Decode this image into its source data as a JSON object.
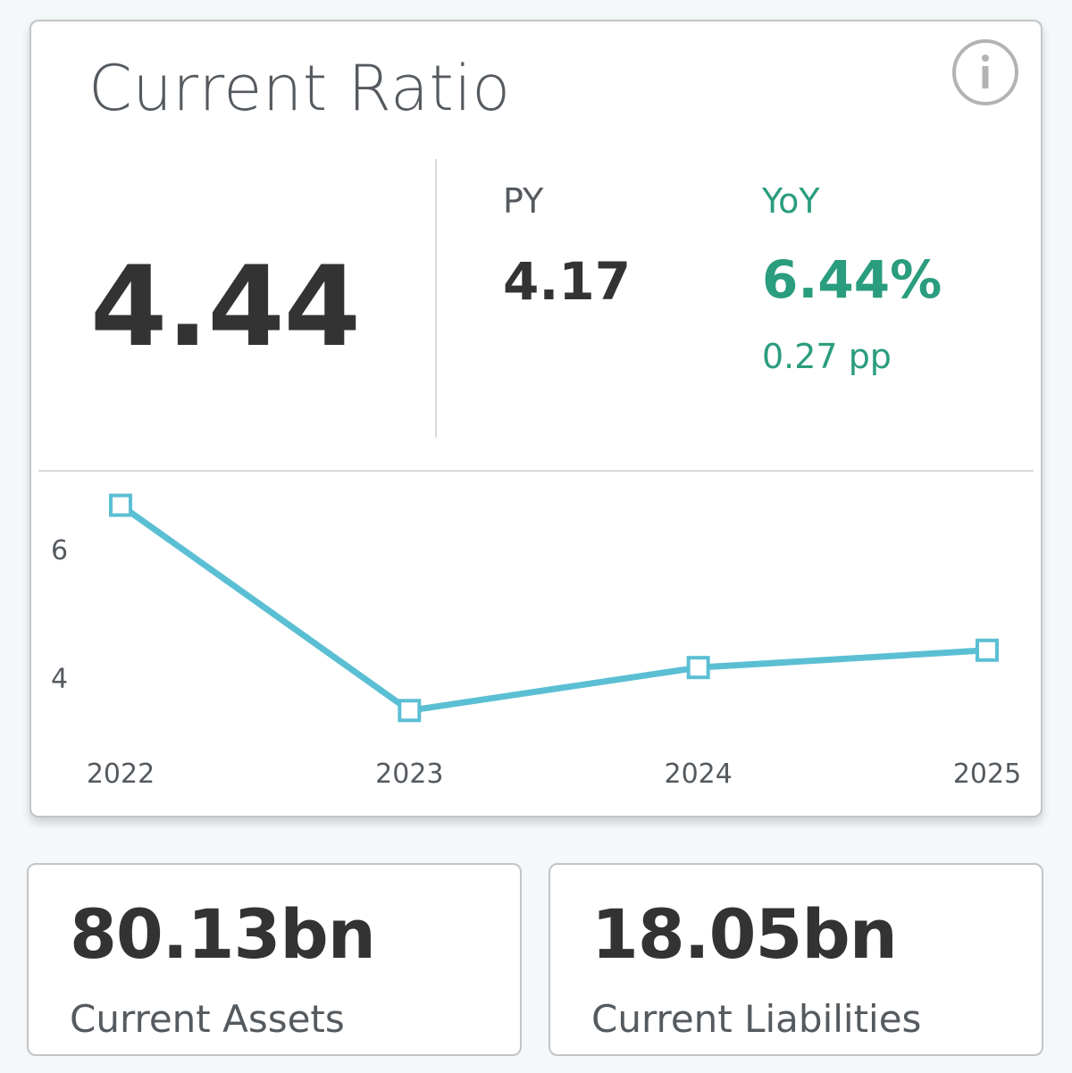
{
  "card": {
    "title": "Current Ratio",
    "info_icon": "info-circle-icon",
    "value": "4.44",
    "py_label": "PY",
    "py_value": "4.17",
    "yoy_label": "YoY",
    "yoy_value": "6.44%",
    "yoy_pp": "0.27 pp",
    "accent_color": "#2a9d7e",
    "line_color": "#5bbfd4"
  },
  "chart_data": {
    "type": "line",
    "x": [
      "2022",
      "2023",
      "2024",
      "2025"
    ],
    "series": [
      {
        "values": [
          6.7,
          3.5,
          4.17,
          4.44
        ]
      }
    ],
    "y_ticks": [
      "6",
      "4"
    ],
    "ylim": [
      3.1,
      7.0
    ],
    "grid": false,
    "marker": "square"
  },
  "tiles": [
    {
      "value": "80.13bn",
      "label": "Current Assets"
    },
    {
      "value": "18.05bn",
      "label": "Current Liabilities"
    }
  ]
}
